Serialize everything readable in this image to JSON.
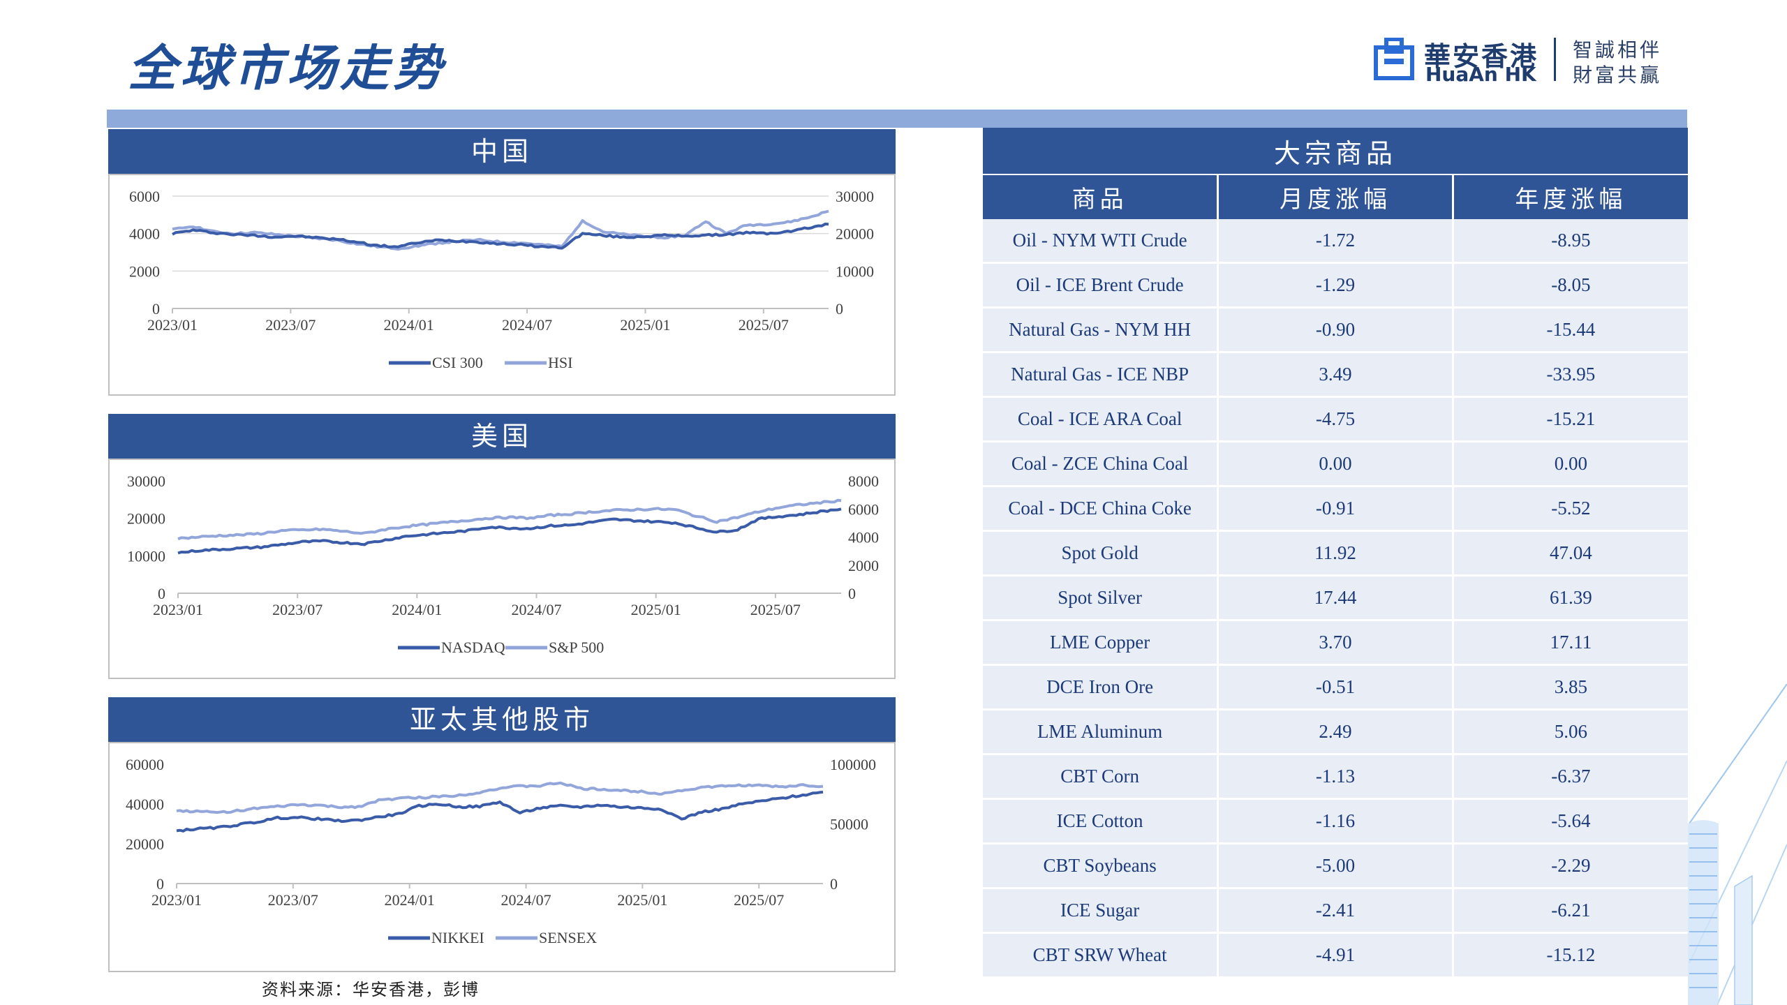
{
  "page_title": "全球市场走势",
  "logo": {
    "name_cn": "華安香港",
    "name_en": "HuaAn HK",
    "slogan_line1": "智誠相伴",
    "slogan_line2": "財富共贏"
  },
  "source_note": "资料来源：华安香港，彭博",
  "colors": {
    "header_blue": "#2f5597",
    "light_bar": "#8eaadb",
    "series_dark": "#3a5ba8",
    "series_light": "#93a6dc",
    "cell_bg": "#e8edf6"
  },
  "chart_data": [
    {
      "type": "line",
      "title": "中国",
      "x_ticks": [
        "2023/01",
        "2023/07",
        "2024/01",
        "2024/07",
        "2025/01",
        "2025/07"
      ],
      "left_axis": {
        "ticks": [
          "0",
          "2000",
          "4000",
          "6000"
        ],
        "ylim": [
          0,
          6000
        ]
      },
      "right_axis": {
        "ticks": [
          "0",
          "10000",
          "20000",
          "30000"
        ],
        "ylim": [
          0,
          30000
        ]
      },
      "grid": true,
      "legend_position": "bottom",
      "series": [
        {
          "name": "CSI 300",
          "axis": "left",
          "color": "#3a5ba8",
          "values": [
            4000,
            4180,
            4050,
            3950,
            3900,
            3820,
            3870,
            3780,
            3700,
            3550,
            3350,
            3300,
            3520,
            3650,
            3600,
            3550,
            3450,
            3400,
            3300,
            3250,
            4000,
            3900,
            3800,
            3850,
            3900,
            3880,
            3900,
            3950,
            4050,
            4000,
            4100,
            4300,
            4500
          ]
        },
        {
          "name": "HSI",
          "axis": "left",
          "color": "#93a6dc",
          "values": [
            4200,
            4400,
            4100,
            4000,
            4050,
            3950,
            3850,
            3750,
            3650,
            3450,
            3300,
            3200,
            3350,
            3500,
            3600,
            3650,
            3550,
            3500,
            3400,
            3300,
            4700,
            4100,
            3950,
            3850,
            3800,
            3900,
            4650,
            4000,
            4450,
            4500,
            4600,
            4850,
            5200
          ]
        }
      ]
    },
    {
      "type": "line",
      "title": "美国",
      "x_ticks": [
        "2023/01",
        "2023/07",
        "2024/01",
        "2024/07",
        "2025/01",
        "2025/07"
      ],
      "left_axis": {
        "ticks": [
          "0",
          "10000",
          "20000",
          "30000"
        ],
        "ylim": [
          0,
          30000
        ]
      },
      "right_axis": {
        "ticks": [
          "0",
          "2000",
          "4000",
          "6000",
          "8000"
        ],
        "ylim": [
          0,
          8000
        ]
      },
      "grid": false,
      "legend_position": "bottom",
      "series": [
        {
          "name": "NASDAQ",
          "axis": "left",
          "color": "#3a5ba8",
          "values": [
            10800,
            11400,
            11700,
            12000,
            12300,
            13000,
            13700,
            13900,
            13500,
            13200,
            14200,
            15200,
            15700,
            16200,
            16700,
            17700,
            17400,
            17300,
            18000,
            18200,
            19000,
            19700,
            19400,
            19100,
            18800,
            17500,
            16300,
            17000,
            19800,
            20500,
            21000,
            21800,
            22500
          ]
        },
        {
          "name": "S&P 500",
          "axis": "right",
          "color": "#93a6dc",
          "values": [
            3900,
            4000,
            4100,
            4150,
            4250,
            4450,
            4500,
            4550,
            4400,
            4250,
            4550,
            4750,
            4900,
            5050,
            5200,
            5350,
            5400,
            5350,
            5550,
            5650,
            5800,
            5900,
            5950,
            6000,
            5950,
            5500,
            5100,
            5400,
            5800,
            6100,
            6300,
            6450,
            6600
          ]
        }
      ]
    },
    {
      "type": "line",
      "title": "亚太其他股市",
      "x_ticks": [
        "2023/01",
        "2023/07",
        "2024/01",
        "2024/07",
        "2025/01",
        "2025/07"
      ],
      "left_axis": {
        "ticks": [
          "0",
          "20000",
          "40000",
          "60000"
        ],
        "ylim": [
          0,
          60000
        ]
      },
      "right_axis": {
        "ticks": [
          "0",
          "50000",
          "100000"
        ],
        "ylim": [
          0,
          100000
        ]
      },
      "grid": false,
      "legend_position": "bottom",
      "series": [
        {
          "name": "NIKKEI",
          "axis": "left",
          "color": "#3a5ba8",
          "values": [
            26500,
            27500,
            28000,
            29500,
            31000,
            33000,
            33200,
            32500,
            31500,
            31800,
            33500,
            35000,
            39000,
            40000,
            38500,
            38800,
            41000,
            35500,
            38000,
            39000,
            38500,
            39500,
            38500,
            38000,
            37500,
            32500,
            36000,
            37500,
            40000,
            41500,
            43000,
            44500,
            46000
          ]
        },
        {
          "name": "SENSEX",
          "axis": "right",
          "color": "#93a6dc",
          "values": [
            61000,
            60500,
            59500,
            61000,
            63000,
            64500,
            66000,
            65500,
            64000,
            64500,
            69500,
            71500,
            72000,
            73000,
            74000,
            76500,
            80000,
            81500,
            82000,
            84500,
            79500,
            79000,
            78000,
            77000,
            75500,
            78000,
            80500,
            81500,
            82500,
            82000,
            81000,
            82500,
            81500
          ]
        }
      ]
    },
    {
      "type": "table",
      "title": "大宗商品",
      "columns": [
        "商品",
        "月度涨幅",
        "年度涨幅"
      ],
      "rows": [
        [
          "Oil - NYM WTI Crude",
          "-1.72",
          "-8.95"
        ],
        [
          "Oil - ICE Brent Crude",
          "-1.29",
          "-8.05"
        ],
        [
          "Natural Gas - NYM HH",
          "-0.90",
          "-15.44"
        ],
        [
          "Natural Gas - ICE NBP",
          "3.49",
          "-33.95"
        ],
        [
          "Coal - ICE ARA Coal",
          "-4.75",
          "-15.21"
        ],
        [
          "Coal - ZCE China Coal",
          "0.00",
          "0.00"
        ],
        [
          "Coal - DCE China Coke",
          "-0.91",
          "-5.52"
        ],
        [
          "Spot Gold",
          "11.92",
          "47.04"
        ],
        [
          "Spot Silver",
          "17.44",
          "61.39"
        ],
        [
          "LME Copper",
          "3.70",
          "17.11"
        ],
        [
          "DCE Iron Ore",
          "-0.51",
          "3.85"
        ],
        [
          "LME Aluminum",
          "2.49",
          "5.06"
        ],
        [
          "CBT Corn",
          "-1.13",
          "-6.37"
        ],
        [
          "ICE Cotton",
          "-1.16",
          "-5.64"
        ],
        [
          "CBT Soybeans",
          "-5.00",
          "-2.29"
        ],
        [
          "ICE Sugar",
          "-2.41",
          "-6.21"
        ],
        [
          "CBT SRW Wheat",
          "-4.91",
          "-15.12"
        ]
      ]
    }
  ]
}
